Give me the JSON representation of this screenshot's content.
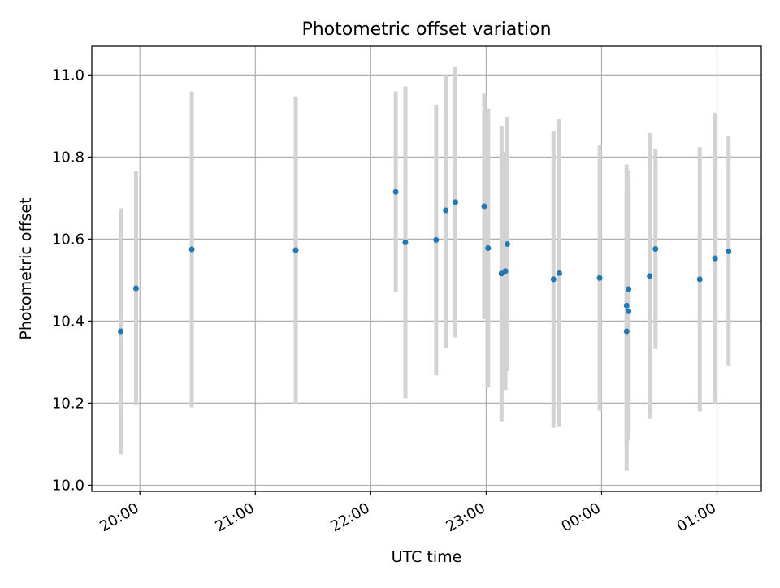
{
  "chart_data": {
    "type": "scatter",
    "title": "Photometric offset variation",
    "xlabel": "UTC time",
    "ylabel": "Photometric offset",
    "x_axis": {
      "kind": "time",
      "range": [
        "19:35",
        "25:23"
      ],
      "ticks": [
        {
          "value": "20:00",
          "label": "20:00"
        },
        {
          "value": "21:00",
          "label": "21:00"
        },
        {
          "value": "22:00",
          "label": "22:00"
        },
        {
          "value": "23:00",
          "label": "23:00"
        },
        {
          "value": "24:00",
          "label": "00:00"
        },
        {
          "value": "25:00",
          "label": "01:00"
        }
      ]
    },
    "y_axis": {
      "range": [
        9.985,
        11.07
      ],
      "ticks": [
        10.0,
        10.2,
        10.4,
        10.6,
        10.8,
        11.0
      ],
      "tick_labels": [
        "10.0",
        "10.2",
        "10.4",
        "10.6",
        "10.8",
        "11.0"
      ]
    },
    "grid": true,
    "colors": {
      "point": "#1f77b4",
      "errorbar": "#d3d3d3",
      "grid": "#b0b0b0"
    },
    "points": [
      {
        "x": "19:50",
        "y": 10.375,
        "ylow": 10.075,
        "yhigh": 10.675
      },
      {
        "x": "19:58",
        "y": 10.48,
        "ylow": 10.195,
        "yhigh": 10.765
      },
      {
        "x": "20:27",
        "y": 10.575,
        "ylow": 10.19,
        "yhigh": 10.96
      },
      {
        "x": "21:21",
        "y": 10.573,
        "ylow": 10.198,
        "yhigh": 10.948
      },
      {
        "x": "22:13",
        "y": 10.715,
        "ylow": 10.47,
        "yhigh": 10.96
      },
      {
        "x": "22:18",
        "y": 10.592,
        "ylow": 10.212,
        "yhigh": 10.972
      },
      {
        "x": "22:34",
        "y": 10.598,
        "ylow": 10.268,
        "yhigh": 10.928
      },
      {
        "x": "22:39",
        "y": 10.67,
        "ylow": 10.335,
        "yhigh": 11.0
      },
      {
        "x": "22:44",
        "y": 10.69,
        "ylow": 10.36,
        "yhigh": 11.02
      },
      {
        "x": "22:59",
        "y": 10.68,
        "ylow": 10.405,
        "yhigh": 10.955
      },
      {
        "x": "23:01",
        "y": 10.578,
        "ylow": 10.238,
        "yhigh": 10.918
      },
      {
        "x": "23:08",
        "y": 10.516,
        "ylow": 10.156,
        "yhigh": 10.876
      },
      {
        "x": "23:10",
        "y": 10.522,
        "ylow": 10.232,
        "yhigh": 10.812
      },
      {
        "x": "23:11",
        "y": 10.588,
        "ylow": 10.278,
        "yhigh": 10.898
      },
      {
        "x": "23:35",
        "y": 10.502,
        "ylow": 10.14,
        "yhigh": 10.864
      },
      {
        "x": "23:38",
        "y": 10.517,
        "ylow": 10.142,
        "yhigh": 10.892
      },
      {
        "x": "23:59",
        "y": 10.505,
        "ylow": 10.182,
        "yhigh": 10.828
      },
      {
        "x": "24:13",
        "y": 10.375,
        "ylow": 10.035,
        "yhigh": 10.715
      },
      {
        "x": "24:13",
        "y": 10.438,
        "ylow": 10.094,
        "yhigh": 10.782
      },
      {
        "x": "24:14",
        "y": 10.424,
        "ylow": 10.11,
        "yhigh": 10.738
      },
      {
        "x": "24:14",
        "y": 10.478,
        "ylow": 10.13,
        "yhigh": 10.765
      },
      {
        "x": "24:25",
        "y": 10.51,
        "ylow": 10.162,
        "yhigh": 10.858
      },
      {
        "x": "24:28",
        "y": 10.576,
        "ylow": 10.332,
        "yhigh": 10.82
      },
      {
        "x": "24:51",
        "y": 10.502,
        "ylow": 10.18,
        "yhigh": 10.824
      },
      {
        "x": "24:59",
        "y": 10.553,
        "ylow": 10.198,
        "yhigh": 10.908
      },
      {
        "x": "25:06",
        "y": 10.57,
        "ylow": 10.29,
        "yhigh": 10.85
      }
    ]
  }
}
